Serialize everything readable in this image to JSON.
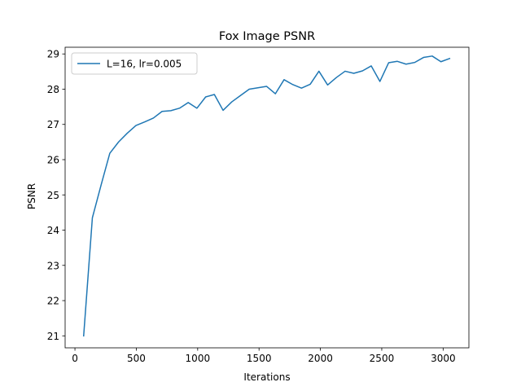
{
  "chart_data": {
    "type": "line",
    "title": "Fox Image PSNR",
    "xlabel": "Iterations",
    "ylabel": "PSNR",
    "xlim": [
      -80,
      3210
    ],
    "ylim": [
      20.66,
      29.19
    ],
    "xticks": [
      0,
      500,
      1000,
      1500,
      2000,
      2500,
      3000
    ],
    "yticks": [
      21,
      22,
      23,
      24,
      25,
      26,
      27,
      28,
      29
    ],
    "grid": false,
    "legend_position": "top-left",
    "series": [
      {
        "name": "L=16, lr=0.005",
        "color": "#1f77b4",
        "x": [
          71,
          142,
          213,
          284,
          355,
          426,
          497,
          568,
          639,
          710,
          781,
          852,
          923,
          994,
          1065,
          1136,
          1207,
          1278,
          1349,
          1420,
          1491,
          1562,
          1633,
          1704,
          1775,
          1846,
          1917,
          1988,
          2059,
          2130,
          2201,
          2272,
          2343,
          2414,
          2485,
          2556,
          2627,
          2698,
          2769,
          2840,
          2911,
          2982,
          3053
        ],
        "y": [
          21.0,
          24.35,
          25.28,
          26.18,
          26.5,
          26.75,
          26.97,
          27.07,
          27.18,
          27.37,
          27.39,
          27.46,
          27.62,
          27.46,
          27.78,
          27.85,
          27.4,
          27.64,
          27.82,
          28.0,
          28.04,
          28.08,
          27.87,
          28.27,
          28.13,
          28.03,
          28.14,
          28.51,
          28.12,
          28.33,
          28.51,
          28.45,
          28.52,
          28.66,
          28.22,
          28.75,
          28.79,
          28.71,
          28.76,
          28.9,
          28.94,
          28.78,
          28.87
        ]
      }
    ]
  }
}
